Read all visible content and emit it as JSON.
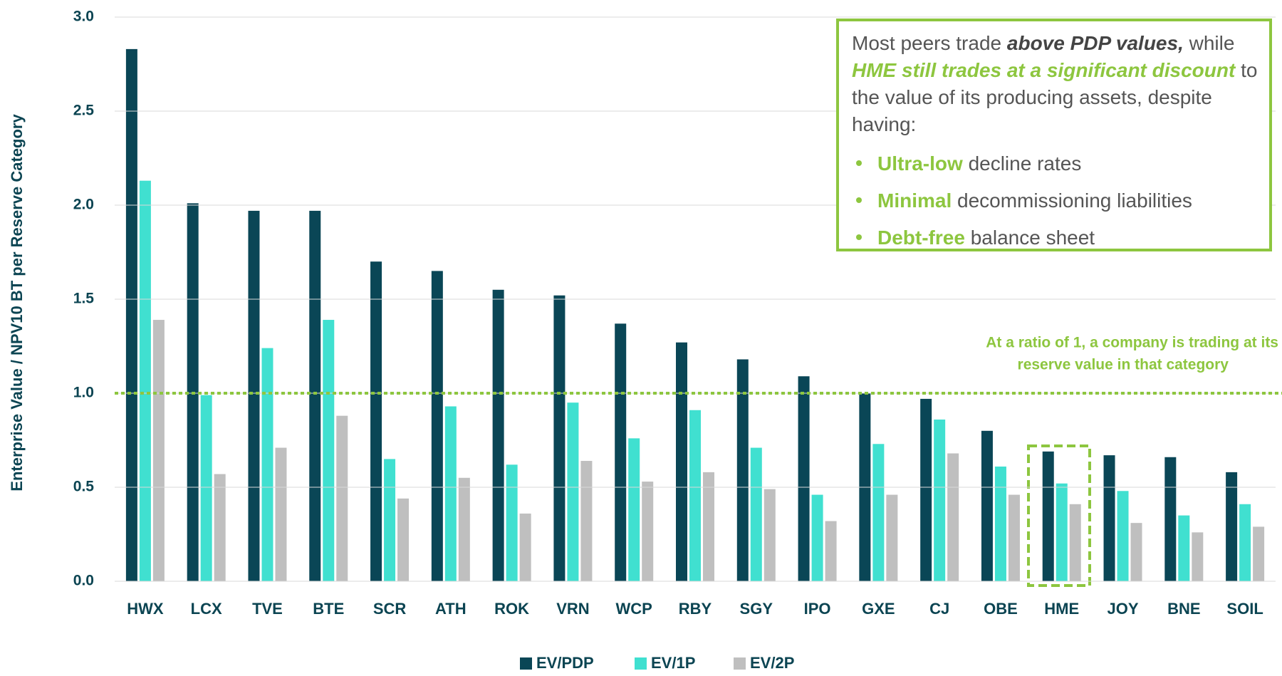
{
  "chart_data": {
    "type": "bar",
    "y_label": "Enterprise Value / NPV10 BT per Reserve Category",
    "categories": [
      "HWX",
      "LCX",
      "TVE",
      "BTE",
      "SCR",
      "ATH",
      "ROK",
      "VRN",
      "WCP",
      "RBY",
      "SGY",
      "IPO",
      "GXE",
      "CJ",
      "OBE",
      "HME",
      "JOY",
      "BNE",
      "SOIL"
    ],
    "series": [
      {
        "name": "EV/PDP",
        "color": "#0a4656",
        "values": [
          2.83,
          2.01,
          1.97,
          1.97,
          1.7,
          1.65,
          1.55,
          1.52,
          1.37,
          1.27,
          1.18,
          1.09,
          1.0,
          0.97,
          0.8,
          0.69,
          0.67,
          0.66,
          0.58
        ]
      },
      {
        "name": "EV/1P",
        "color": "#40e0d0",
        "values": [
          2.13,
          0.99,
          1.24,
          1.39,
          0.65,
          0.93,
          0.62,
          0.95,
          0.76,
          0.91,
          0.71,
          0.46,
          0.73,
          0.86,
          0.61,
          0.52,
          0.48,
          0.35,
          0.41
        ]
      },
      {
        "name": "EV/2P",
        "color": "#bfbfbf",
        "values": [
          1.39,
          0.57,
          0.71,
          0.88,
          0.44,
          0.55,
          0.36,
          0.64,
          0.53,
          0.58,
          0.49,
          0.32,
          0.46,
          0.68,
          0.46,
          0.41,
          0.31,
          0.26,
          0.29
        ]
      }
    ],
    "ylim": [
      0,
      3
    ],
    "yticks": [
      {
        "value": 0,
        "label": "0.0"
      },
      0.5,
      {
        "value": 1,
        "label": "1.0"
      },
      1.5,
      {
        "value": 2,
        "label": "2.0"
      },
      2.5,
      {
        "value": 3,
        "label": "3.0"
      }
    ],
    "grid": true,
    "reference_line": {
      "value": 1,
      "color": "#8dc63f",
      "label_lines": [
        "At a ratio of 1, a company is trading at its",
        "reserve value in that category"
      ]
    },
    "callout": {
      "segments": [
        "Most peers trade",
        "above PDP values,",
        "while",
        "HME still trades at a significant discount",
        "to the value of its producing assets, despite having:"
      ],
      "bullets": [
        {
          "bold": "Ultra-low",
          "text": "decline rates"
        },
        {
          "bold": "Minimal",
          "text": "decommissioning liabilities"
        },
        {
          "bold": "Debt-free",
          "text": "balance sheet"
        }
      ]
    }
  }
}
